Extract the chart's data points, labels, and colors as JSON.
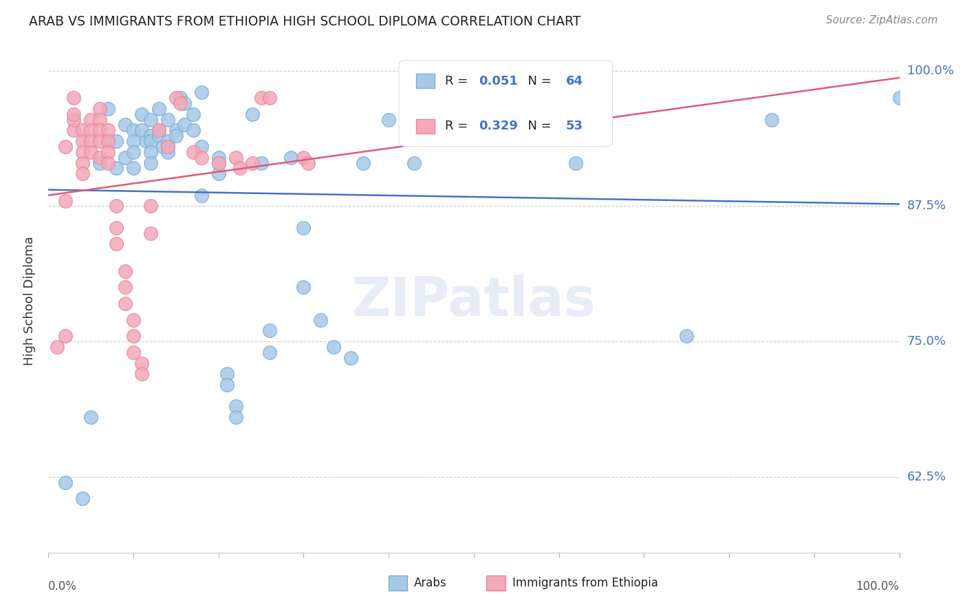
{
  "title": "ARAB VS IMMIGRANTS FROM ETHIOPIA HIGH SCHOOL DIPLOMA CORRELATION CHART",
  "source": "Source: ZipAtlas.com",
  "ylabel": "High School Diploma",
  "ytick_labels": [
    "100.0%",
    "87.5%",
    "75.0%",
    "62.5%"
  ],
  "ytick_values": [
    1.0,
    0.875,
    0.75,
    0.625
  ],
  "xlim": [
    0.0,
    1.0
  ],
  "ylim": [
    0.555,
    1.02
  ],
  "legend_label_blue": "Arabs",
  "legend_label_pink": "Immigrants from Ethiopia",
  "watermark": "ZIPatlas",
  "blue_color": "#a8c8e8",
  "pink_color": "#f4a8b8",
  "blue_edge_color": "#7aafd4",
  "pink_edge_color": "#e888a0",
  "blue_line_color": "#4472c4",
  "pink_line_color": "#e05878",
  "blue_r": "0.051",
  "blue_n": "64",
  "pink_r": "0.329",
  "pink_n": "53",
  "blue_scatter": [
    [
      0.02,
      0.62
    ],
    [
      0.04,
      0.605
    ],
    [
      0.05,
      0.68
    ],
    [
      0.06,
      0.915
    ],
    [
      0.07,
      0.935
    ],
    [
      0.07,
      0.965
    ],
    [
      0.08,
      0.935
    ],
    [
      0.08,
      0.91
    ],
    [
      0.09,
      0.92
    ],
    [
      0.09,
      0.95
    ],
    [
      0.1,
      0.945
    ],
    [
      0.1,
      0.91
    ],
    [
      0.1,
      0.935
    ],
    [
      0.1,
      0.925
    ],
    [
      0.11,
      0.96
    ],
    [
      0.11,
      0.945
    ],
    [
      0.115,
      0.935
    ],
    [
      0.12,
      0.955
    ],
    [
      0.12,
      0.94
    ],
    [
      0.12,
      0.935
    ],
    [
      0.12,
      0.925
    ],
    [
      0.12,
      0.915
    ],
    [
      0.13,
      0.965
    ],
    [
      0.13,
      0.945
    ],
    [
      0.13,
      0.94
    ],
    [
      0.135,
      0.93
    ],
    [
      0.14,
      0.955
    ],
    [
      0.14,
      0.935
    ],
    [
      0.14,
      0.93
    ],
    [
      0.14,
      0.925
    ],
    [
      0.15,
      0.945
    ],
    [
      0.15,
      0.94
    ],
    [
      0.155,
      0.975
    ],
    [
      0.16,
      0.97
    ],
    [
      0.16,
      0.95
    ],
    [
      0.17,
      0.96
    ],
    [
      0.17,
      0.945
    ],
    [
      0.18,
      0.98
    ],
    [
      0.18,
      0.93
    ],
    [
      0.18,
      0.885
    ],
    [
      0.2,
      0.92
    ],
    [
      0.2,
      0.915
    ],
    [
      0.2,
      0.905
    ],
    [
      0.21,
      0.72
    ],
    [
      0.21,
      0.71
    ],
    [
      0.22,
      0.69
    ],
    [
      0.22,
      0.68
    ],
    [
      0.24,
      0.96
    ],
    [
      0.25,
      0.915
    ],
    [
      0.26,
      0.76
    ],
    [
      0.26,
      0.74
    ],
    [
      0.285,
      0.92
    ],
    [
      0.3,
      0.855
    ],
    [
      0.3,
      0.8
    ],
    [
      0.32,
      0.77
    ],
    [
      0.335,
      0.745
    ],
    [
      0.355,
      0.735
    ],
    [
      0.37,
      0.915
    ],
    [
      0.4,
      0.955
    ],
    [
      0.43,
      0.915
    ],
    [
      0.62,
      0.915
    ],
    [
      0.75,
      0.755
    ],
    [
      0.85,
      0.955
    ],
    [
      1.0,
      0.975
    ]
  ],
  "pink_scatter": [
    [
      0.01,
      0.745
    ],
    [
      0.02,
      0.755
    ],
    [
      0.02,
      0.88
    ],
    [
      0.02,
      0.93
    ],
    [
      0.03,
      0.945
    ],
    [
      0.03,
      0.955
    ],
    [
      0.03,
      0.96
    ],
    [
      0.03,
      0.975
    ],
    [
      0.04,
      0.945
    ],
    [
      0.04,
      0.935
    ],
    [
      0.04,
      0.925
    ],
    [
      0.04,
      0.915
    ],
    [
      0.04,
      0.905
    ],
    [
      0.05,
      0.955
    ],
    [
      0.05,
      0.945
    ],
    [
      0.05,
      0.935
    ],
    [
      0.05,
      0.925
    ],
    [
      0.06,
      0.965
    ],
    [
      0.06,
      0.955
    ],
    [
      0.06,
      0.945
    ],
    [
      0.06,
      0.935
    ],
    [
      0.06,
      0.92
    ],
    [
      0.07,
      0.945
    ],
    [
      0.07,
      0.935
    ],
    [
      0.07,
      0.925
    ],
    [
      0.07,
      0.915
    ],
    [
      0.08,
      0.875
    ],
    [
      0.08,
      0.855
    ],
    [
      0.08,
      0.84
    ],
    [
      0.09,
      0.815
    ],
    [
      0.09,
      0.8
    ],
    [
      0.09,
      0.785
    ],
    [
      0.1,
      0.77
    ],
    [
      0.1,
      0.755
    ],
    [
      0.1,
      0.74
    ],
    [
      0.11,
      0.73
    ],
    [
      0.11,
      0.72
    ],
    [
      0.12,
      0.875
    ],
    [
      0.12,
      0.85
    ],
    [
      0.13,
      0.945
    ],
    [
      0.14,
      0.93
    ],
    [
      0.15,
      0.975
    ],
    [
      0.155,
      0.97
    ],
    [
      0.17,
      0.925
    ],
    [
      0.18,
      0.92
    ],
    [
      0.2,
      0.915
    ],
    [
      0.22,
      0.92
    ],
    [
      0.225,
      0.91
    ],
    [
      0.24,
      0.915
    ],
    [
      0.25,
      0.975
    ],
    [
      0.26,
      0.975
    ],
    [
      0.3,
      0.92
    ],
    [
      0.305,
      0.915
    ]
  ]
}
